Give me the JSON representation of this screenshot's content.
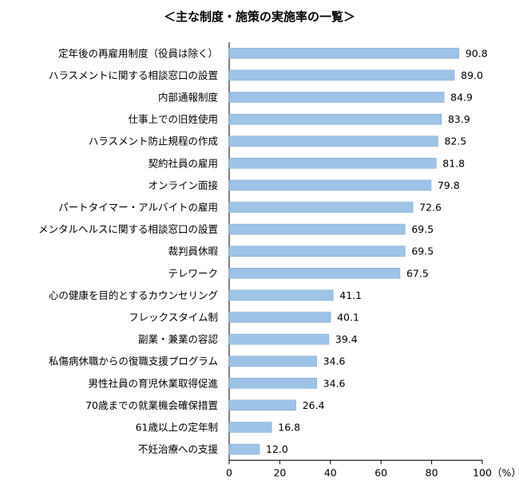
{
  "chart_data": {
    "type": "bar",
    "orientation": "horizontal",
    "title": "＜主な制度・施策の実施率の一覧＞",
    "xlabel": "",
    "ylabel": "",
    "unit_label": "（%）",
    "xlim": [
      0,
      100
    ],
    "xticks": [
      "0",
      "20",
      "40",
      "60",
      "80",
      "100"
    ],
    "bar_color": "#9dc3e6",
    "bar_edge_color": "#7fa7cf",
    "grid": false,
    "legend": "none",
    "categories": [
      "定年後の再雇用制度（役員は除く）",
      "ハラスメントに関する相談窓口の設置",
      "内部通報制度",
      "仕事上での旧姓使用",
      "ハラスメント防止規程の作成",
      "契約社員の雇用",
      "オンライン面接",
      "パートタイマー・アルバイトの雇用",
      "メンタルヘルスに関する相談窓口の設置",
      "裁判員休暇",
      "テレワーク",
      "心の健康を目的とするカウンセリング",
      "フレックスタイム制",
      "副業・兼業の容認",
      "私傷病休職からの復職支援プログラム",
      "男性社員の育児休業取得促進",
      "70歳までの就業機会確保措置",
      "61歳以上の定年制",
      "不妊治療への支援"
    ],
    "values": [
      90.8,
      89.0,
      84.9,
      83.9,
      82.5,
      81.8,
      79.8,
      72.6,
      69.5,
      69.5,
      67.5,
      41.1,
      40.1,
      39.4,
      34.6,
      34.6,
      26.4,
      16.8,
      12.0
    ],
    "value_labels": [
      "90.8",
      "89.0",
      "84.9",
      "83.9",
      "82.5",
      "81.8",
      "79.8",
      "72.6",
      "69.5",
      "69.5",
      "67.5",
      "41.1",
      "40.1",
      "39.4",
      "34.6",
      "34.6",
      "26.4",
      "16.8",
      "12.0"
    ]
  }
}
